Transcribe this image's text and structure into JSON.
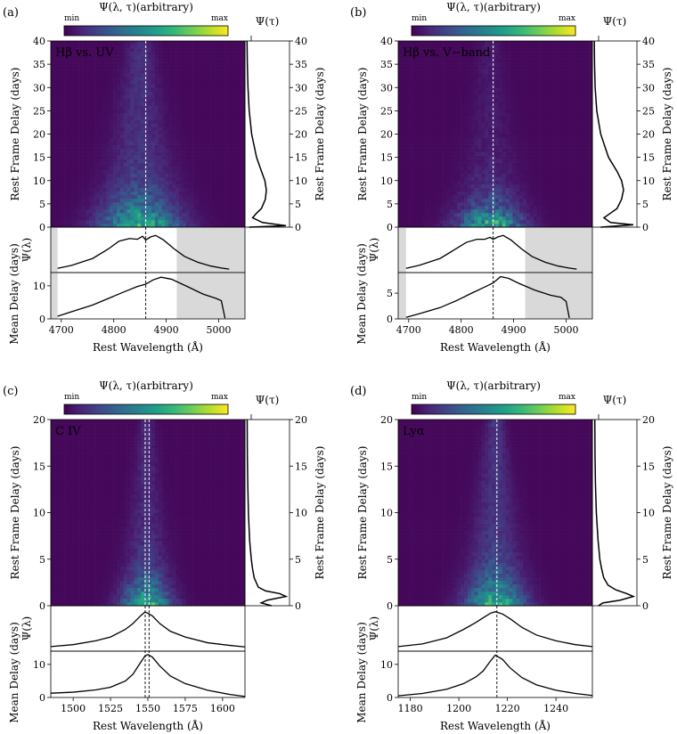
{
  "colorbar": {
    "title": "Ψ(λ, τ)(arbitrary)",
    "min_label": "min",
    "max_label": "max"
  },
  "delay_profile_title": "Ψ(τ)",
  "chart_data": [
    {
      "type": "heatmap",
      "panel_label": "(a)",
      "annotation": "Hβ vs. UV",
      "title": "Ψ(λ, τ)(arbitrary)",
      "xlabel": "Rest Wavelength (Å)",
      "ylabel_map": "Rest Frame Delay (days)",
      "ylabel_profile": "Ψ(λ)",
      "ylabel_mean": "Mean Delay (days)",
      "xlim": [
        4680,
        5050
      ],
      "xticks": [
        4700,
        4800,
        4900,
        5000
      ],
      "ylim": [
        0,
        40
      ],
      "yticks": [
        0,
        5,
        10,
        15,
        20,
        25,
        30,
        35,
        40
      ],
      "mean_ylim": [
        0,
        14
      ],
      "mean_yticks": [
        0,
        10
      ],
      "line_center": [
        4861
      ],
      "heat_center": 4850,
      "heat_width": 70,
      "spread_growth": 1.6,
      "heat_gamma": 0.9,
      "low_delay": 2.5,
      "masked_regions": [
        [
          4680,
          4693
        ],
        [
          4920,
          5050
        ]
      ],
      "tau_profile": {
        "tau": [
          0,
          0.3,
          1,
          2,
          3,
          4,
          6,
          8,
          10,
          12,
          15,
          20,
          25,
          30,
          35,
          40
        ],
        "psi": [
          0.05,
          0.8,
          0.32,
          0.12,
          0.2,
          0.3,
          0.38,
          0.4,
          0.37,
          0.3,
          0.2,
          0.1,
          0.05,
          0.025,
          0.012,
          0.005
        ]
      },
      "lambda_profile": {
        "x": [
          4693,
          4720,
          4760,
          4790,
          4810,
          4830,
          4845,
          4855,
          4861,
          4870,
          4880,
          4895,
          4915,
          4935,
          4960,
          4985,
          5005,
          5020
        ],
        "y": [
          0.04,
          0.12,
          0.3,
          0.55,
          0.75,
          0.82,
          0.8,
          0.88,
          0.78,
          0.86,
          0.9,
          0.78,
          0.55,
          0.35,
          0.2,
          0.1,
          0.05,
          0.02
        ]
      },
      "mean_delay": {
        "x": [
          4693,
          4720,
          4760,
          4790,
          4820,
          4845,
          4861,
          4875,
          4890,
          4910,
          4940,
          4970,
          4995,
          5005,
          5012
        ],
        "y": [
          0.8,
          2.2,
          4.2,
          6.2,
          8.2,
          9.8,
          10.5,
          11.8,
          12.6,
          12.0,
          9.8,
          7.5,
          6.2,
          5.5,
          0.2
        ]
      }
    },
    {
      "type": "heatmap",
      "panel_label": "(b)",
      "annotation": "Hβ vs. V−band",
      "title": "Ψ(λ, τ)(arbitrary)",
      "xlabel": "Rest Wavelength (Å)",
      "ylabel_map": "Rest Frame Delay (days)",
      "ylabel_profile": "Ψ(λ)",
      "ylabel_mean": "Mean Delay (days)",
      "xlim": [
        4680,
        5050
      ],
      "xticks": [
        4700,
        4800,
        4900,
        5000
      ],
      "ylim": [
        0,
        40
      ],
      "yticks": [
        0,
        5,
        10,
        15,
        20,
        25,
        30,
        35,
        40
      ],
      "mean_ylim": [
        0,
        9
      ],
      "mean_yticks": [
        0,
        5
      ],
      "line_center": [
        4861
      ],
      "heat_center": 4855,
      "heat_width": 70,
      "spread_growth": 1.6,
      "heat_gamma": 1.3,
      "low_delay": 2.5,
      "masked_regions": [
        [
          4680,
          4695
        ],
        [
          4922,
          5050
        ]
      ],
      "tau_profile": {
        "tau": [
          0,
          0.5,
          1,
          2,
          3,
          4,
          6,
          8,
          10,
          12,
          15,
          20,
          25,
          30,
          35,
          40
        ],
        "psi": [
          0.1,
          0.6,
          0.25,
          0.15,
          0.25,
          0.35,
          0.42,
          0.45,
          0.42,
          0.35,
          0.22,
          0.1,
          0.04,
          0.015,
          0.006,
          0.002
        ]
      },
      "lambda_profile": {
        "x": [
          4695,
          4720,
          4760,
          4790,
          4810,
          4830,
          4845,
          4855,
          4861,
          4870,
          4880,
          4895,
          4915,
          4935,
          4960,
          4985,
          5005,
          5020
        ],
        "y": [
          0.04,
          0.12,
          0.3,
          0.55,
          0.72,
          0.8,
          0.8,
          0.85,
          0.8,
          0.86,
          0.9,
          0.78,
          0.55,
          0.35,
          0.2,
          0.1,
          0.05,
          0.02
        ]
      },
      "mean_delay": {
        "x": [
          4695,
          4720,
          4760,
          4790,
          4820,
          4845,
          4861,
          4875,
          4890,
          4910,
          4940,
          4970,
          4990,
          5000,
          5006
        ],
        "y": [
          0.3,
          1.0,
          2.2,
          3.5,
          5.0,
          6.2,
          7.0,
          8.2,
          7.9,
          6.9,
          5.6,
          4.6,
          4.2,
          3.4,
          0.2
        ]
      }
    },
    {
      "type": "heatmap",
      "panel_label": "(c)",
      "annotation": "C IV",
      "title": "Ψ(λ, τ)(arbitrary)",
      "xlabel": "Rest Wavelength (Å)",
      "ylabel_map": "Rest Frame Delay (days)",
      "ylabel_profile": "Ψ(λ)",
      "ylabel_mean": "Mean Delay (days)",
      "xlim": [
        1485,
        1615
      ],
      "xticks": [
        1500,
        1525,
        1550,
        1575,
        1600
      ],
      "ylim": [
        0,
        20
      ],
      "yticks": [
        0,
        5,
        10,
        15,
        20
      ],
      "mean_ylim": [
        0,
        14
      ],
      "mean_yticks": [
        0,
        10
      ],
      "line_center": [
        1548.2,
        1550.8
      ],
      "heat_center": 1549,
      "heat_width": 16,
      "spread_growth": 0.5,
      "heat_gamma": 1.0,
      "low_delay": 1.2,
      "masked_regions": [],
      "tau_profile": {
        "tau": [
          0,
          0.3,
          0.6,
          1,
          1.3,
          1.6,
          2,
          3,
          4,
          5,
          7,
          10,
          13,
          16,
          20
        ],
        "psi": [
          0.6,
          0.35,
          0.5,
          0.95,
          0.8,
          0.45,
          0.28,
          0.18,
          0.14,
          0.11,
          0.07,
          0.04,
          0.025,
          0.015,
          0.01
        ]
      },
      "lambda_profile": {
        "x": [
          1485,
          1500,
          1515,
          1525,
          1535,
          1540,
          1545,
          1548,
          1550,
          1553,
          1558,
          1565,
          1575,
          1590,
          1605,
          1615
        ],
        "y": [
          0.05,
          0.1,
          0.2,
          0.3,
          0.5,
          0.65,
          0.85,
          0.95,
          0.92,
          0.85,
          0.65,
          0.45,
          0.3,
          0.15,
          0.08,
          0.04
        ]
      },
      "mean_delay": {
        "x": [
          1485,
          1500,
          1515,
          1525,
          1535,
          1540,
          1545,
          1548,
          1550,
          1553,
          1558,
          1565,
          1575,
          1590,
          1605,
          1615
        ],
        "y": [
          1.3,
          1.6,
          2.3,
          3.1,
          5.0,
          7.0,
          10.5,
          12.5,
          13.0,
          12.2,
          9.5,
          6.5,
          4.2,
          2.2,
          0.9,
          0.3
        ]
      }
    },
    {
      "type": "heatmap",
      "panel_label": "(d)",
      "annotation": "Lyα",
      "title": "Ψ(λ, τ)(arbitrary)",
      "xlabel": "Rest Wavelength (Å)",
      "ylabel_map": "Rest Frame Delay (days)",
      "ylabel_profile": "Ψ(λ)",
      "ylabel_mean": "Mean Delay (days)",
      "xlim": [
        1175,
        1255
      ],
      "xticks": [
        1180,
        1200,
        1220,
        1240
      ],
      "ylim": [
        0,
        20
      ],
      "yticks": [
        0,
        5,
        10,
        15,
        20
      ],
      "mean_ylim": [
        0,
        14
      ],
      "mean_yticks": [
        0,
        10
      ],
      "line_center": [
        1215.67
      ],
      "heat_center": 1215,
      "heat_width": 11,
      "spread_growth": 0.4,
      "heat_gamma": 0.85,
      "low_delay": 1.2,
      "masked_regions": [],
      "tau_profile": {
        "tau": [
          0,
          0.3,
          0.6,
          1,
          1.3,
          1.7,
          2.2,
          3,
          4,
          5,
          7,
          10,
          13,
          16,
          20
        ],
        "psi": [
          0.1,
          0.2,
          0.6,
          0.9,
          0.75,
          0.5,
          0.32,
          0.22,
          0.17,
          0.13,
          0.09,
          0.05,
          0.03,
          0.02,
          0.015
        ]
      },
      "lambda_profile": {
        "x": [
          1175,
          1185,
          1195,
          1202,
          1207,
          1210,
          1213,
          1215,
          1218,
          1221,
          1226,
          1232,
          1240,
          1248,
          1255
        ],
        "y": [
          0.05,
          0.12,
          0.28,
          0.5,
          0.68,
          0.8,
          0.92,
          0.96,
          0.9,
          0.78,
          0.55,
          0.35,
          0.2,
          0.1,
          0.05
        ]
      },
      "mean_delay": {
        "x": [
          1175,
          1185,
          1195,
          1202,
          1207,
          1210,
          1213,
          1215,
          1218,
          1221,
          1226,
          1232,
          1240,
          1248,
          1255
        ],
        "y": [
          0.5,
          1.2,
          2.5,
          4.2,
          6.2,
          8.0,
          11.0,
          12.8,
          11.5,
          9.0,
          6.0,
          3.8,
          2.2,
          1.2,
          0.6
        ]
      }
    }
  ]
}
